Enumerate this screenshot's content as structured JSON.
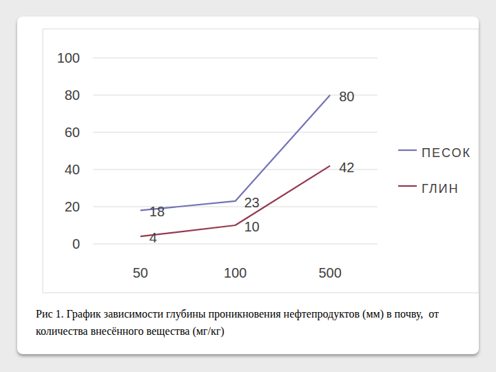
{
  "chart_data": {
    "type": "line",
    "categories": [
      "50",
      "100",
      "500"
    ],
    "series": [
      {
        "name": "ПЕСОК",
        "color": "#7272b6",
        "values": [
          18,
          23,
          80
        ]
      },
      {
        "name": "ГЛИН",
        "color": "#94394f",
        "values": [
          4,
          10,
          42
        ]
      }
    ],
    "ylim": [
      0,
      100
    ],
    "yticks": [
      0,
      20,
      40,
      60,
      80,
      100
    ],
    "grid": true,
    "legend": "right",
    "data_labels": true
  },
  "caption": "Рис 1. График зависимости глубины проникновения нефтепродуктов (мм) в почву,  от количества внесённого вещества (мг/кг)"
}
